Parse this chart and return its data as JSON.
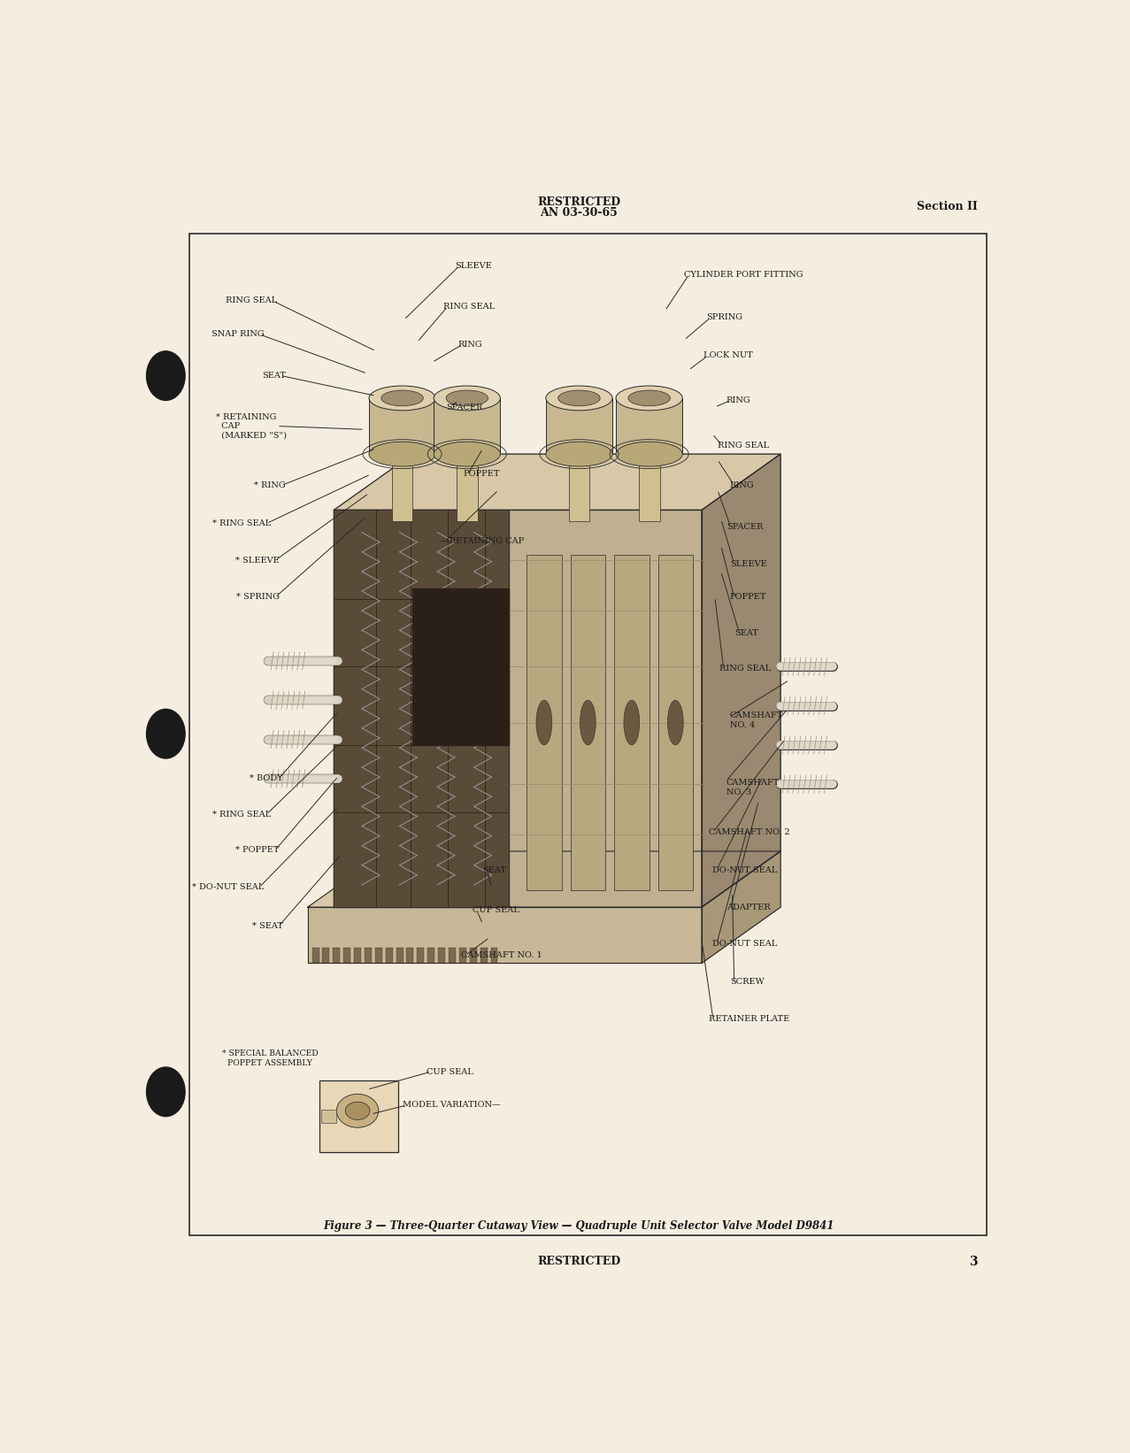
{
  "page_bg_color": "#f5ede0",
  "header_restricted": "RESTRICTED",
  "header_an": "AN 03-30-65",
  "header_section": "Section II",
  "footer_restricted": "RESTRICTED",
  "footer_page_num": "3",
  "figure_caption": "Figure 3 — Three-Quarter Cutaway View — Quadruple Unit Selector Valve Model D9841",
  "text_color": "#1a1a1a",
  "line_color": "#2a2a2a"
}
